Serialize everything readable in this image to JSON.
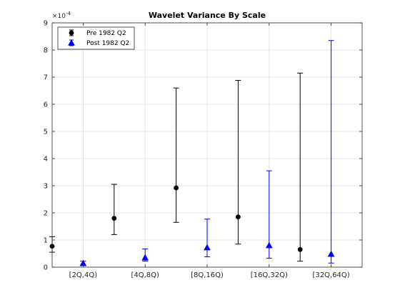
{
  "chart_data": {
    "type": "scatter",
    "title": "Wavelet Variance By Scale",
    "xlabel": "",
    "ylabel": "",
    "y_multiplier_label": "×10",
    "y_multiplier_exponent": "-4",
    "ylim": [
      0,
      9
    ],
    "yticks": [
      0,
      1,
      2,
      3,
      4,
      5,
      6,
      7,
      8,
      9
    ],
    "xlim": [
      0.5,
      5.5
    ],
    "xticks": [
      1,
      2,
      3,
      4,
      5
    ],
    "categories": [
      "[2Q,4Q)",
      "[4Q,8Q)",
      "[8Q,16Q)",
      "[16Q,32Q)",
      "[32Q,64Q)"
    ],
    "grid": true,
    "legend": {
      "position": "top-left"
    },
    "series": [
      {
        "name": "Pre 1982 Q2",
        "color": "#000000",
        "marker": "circle",
        "x": [
          0.5,
          1.5,
          2.5,
          3.5,
          4.5
        ],
        "values": [
          0.77,
          1.8,
          2.92,
          1.85,
          0.65
        ],
        "lower": [
          0.55,
          1.2,
          1.65,
          0.85,
          0.22
        ],
        "upper": [
          1.12,
          3.05,
          6.6,
          6.88,
          7.15
        ]
      },
      {
        "name": "Post 1982 Q2",
        "color": "#0000ff",
        "marker": "triangle",
        "x": [
          1.0,
          2.0,
          3.0,
          4.0,
          5.0
        ],
        "values": [
          0.14,
          0.35,
          0.72,
          0.8,
          0.48
        ],
        "lower": [
          0.07,
          0.22,
          0.38,
          0.33,
          0.15
        ],
        "upper": [
          0.22,
          0.67,
          1.77,
          3.55,
          8.35
        ]
      }
    ]
  }
}
